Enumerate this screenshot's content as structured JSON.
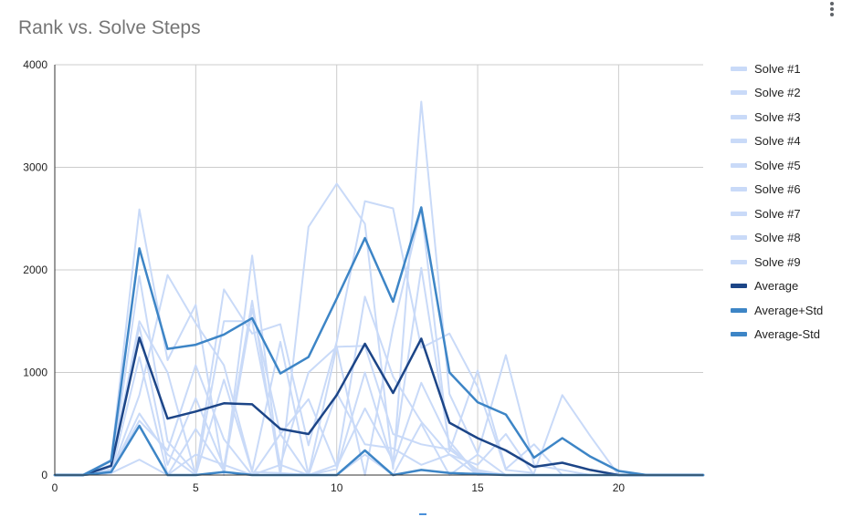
{
  "chart_data": {
    "type": "line",
    "title": "Rank vs. Solve Steps",
    "xlim": [
      0,
      23
    ],
    "ylim": [
      0,
      4000
    ],
    "xticks": [
      0,
      5,
      10,
      15,
      20
    ],
    "yticks": [
      0,
      1000,
      2000,
      3000,
      4000
    ],
    "grid": true,
    "legend_position": "right",
    "x": [
      0,
      1,
      2,
      3,
      4,
      5,
      6,
      7,
      8,
      9,
      10,
      11,
      12,
      13,
      14,
      15,
      16,
      17,
      18,
      19,
      20,
      21,
      22,
      23
    ],
    "series": [
      {
        "name": "Solve #1",
        "color": "#c9daf8",
        "width": 2,
        "values": [
          0,
          0,
          150,
          2590,
          1120,
          1660,
          0,
          2140,
          0,
          2420,
          2840,
          2450,
          60,
          3640,
          790,
          210,
          1170,
          100,
          50,
          0,
          0,
          0,
          0,
          0
        ]
      },
      {
        "name": "Solve #2",
        "color": "#c9daf8",
        "width": 2,
        "values": [
          0,
          0,
          40,
          1940,
          330,
          20,
          1810,
          1380,
          1470,
          290,
          1300,
          2670,
          2600,
          1240,
          1380,
          860,
          50,
          20,
          780,
          380,
          0,
          0,
          0,
          0
        ]
      },
      {
        "name": "Solve #3",
        "color": "#c9daf8",
        "width": 2,
        "values": [
          0,
          0,
          100,
          1450,
          100,
          750,
          80,
          1700,
          0,
          10,
          1250,
          0,
          1430,
          2600,
          230,
          1020,
          60,
          300,
          0,
          0,
          0,
          0,
          0,
          0
        ]
      },
      {
        "name": "Solve #4",
        "color": "#c9daf8",
        "width": 2,
        "values": [
          0,
          0,
          20,
          780,
          1950,
          1480,
          1070,
          40,
          1300,
          0,
          100,
          1740,
          960,
          520,
          200,
          100,
          400,
          0,
          0,
          0,
          0,
          0,
          0,
          0
        ]
      },
      {
        "name": "Solve #5",
        "color": "#c9daf8",
        "width": 2,
        "values": [
          0,
          0,
          30,
          530,
          240,
          1070,
          350,
          0,
          400,
          740,
          80,
          650,
          140,
          2020,
          280,
          30,
          0,
          0,
          0,
          0,
          0,
          0,
          0,
          0
        ]
      },
      {
        "name": "Solve #6",
        "color": "#c9daf8",
        "width": 2,
        "values": [
          0,
          0,
          20,
          1150,
          0,
          450,
          40,
          1620,
          400,
          0,
          60,
          1000,
          100,
          900,
          330,
          0,
          0,
          0,
          0,
          0,
          0,
          0,
          0,
          0
        ]
      },
      {
        "name": "Solve #7",
        "color": "#c9daf8",
        "width": 2,
        "values": [
          0,
          0,
          60,
          1500,
          1000,
          0,
          1500,
          1500,
          100,
          1000,
          1250,
          1260,
          400,
          300,
          250,
          50,
          0,
          0,
          0,
          0,
          0,
          0,
          0,
          0
        ]
      },
      {
        "name": "Solve #8",
        "color": "#c9daf8",
        "width": 2,
        "values": [
          0,
          0,
          20,
          150,
          0,
          200,
          100,
          0,
          100,
          0,
          0,
          200,
          0,
          500,
          0,
          200,
          0,
          0,
          0,
          0,
          0,
          0,
          0,
          0
        ]
      },
      {
        "name": "Solve #9",
        "color": "#c9daf8",
        "width": 2,
        "values": [
          0,
          0,
          30,
          600,
          200,
          0,
          930,
          30,
          20,
          0,
          800,
          300,
          260,
          100,
          200,
          0,
          0,
          0,
          0,
          0,
          0,
          0,
          0,
          0
        ]
      },
      {
        "name": "Average",
        "color": "#1c4587",
        "width": 2.5,
        "values": [
          0,
          0,
          90,
          1340,
          550,
          620,
          700,
          690,
          450,
          400,
          780,
          1280,
          800,
          1330,
          510,
          360,
          240,
          80,
          120,
          50,
          0,
          0,
          0,
          0
        ]
      },
      {
        "name": "Average+Std",
        "color": "#3d85c6",
        "width": 2.5,
        "values": [
          0,
          0,
          140,
          2210,
          1230,
          1270,
          1370,
          1530,
          990,
          1150,
          1720,
          2310,
          1690,
          2610,
          1000,
          710,
          590,
          170,
          360,
          180,
          40,
          0,
          0,
          0
        ]
      },
      {
        "name": "Average-Std",
        "color": "#3d85c6",
        "width": 2.5,
        "values": [
          0,
          0,
          30,
          480,
          0,
          0,
          30,
          0,
          0,
          0,
          0,
          240,
          0,
          50,
          20,
          10,
          0,
          0,
          0,
          0,
          0,
          0,
          0,
          0
        ]
      }
    ]
  }
}
